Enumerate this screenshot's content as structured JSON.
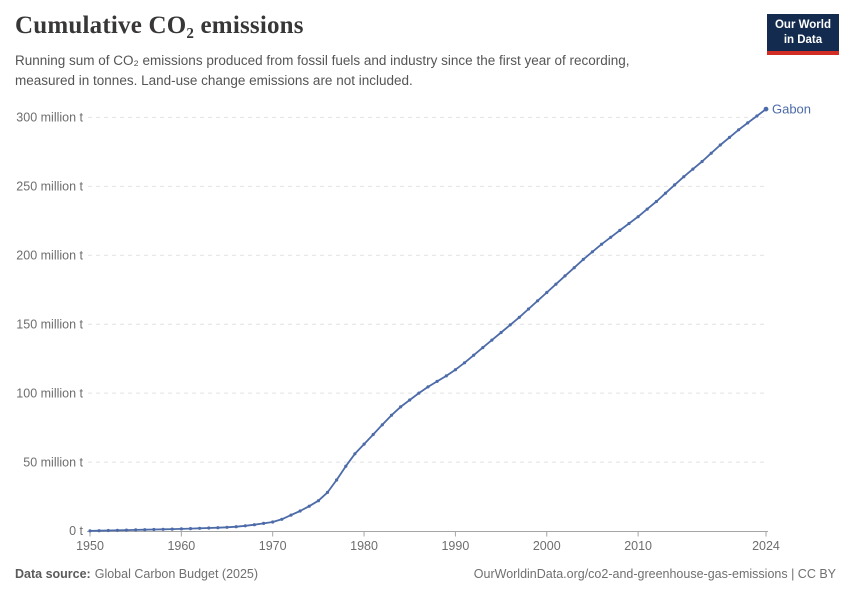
{
  "header": {
    "title": "Cumulative CO₂ emissions",
    "subtitle_line1": "Running sum of CO₂ emissions produced from fossil fuels and industry since the first year of recording,",
    "subtitle_line2": "measured in tonnes. Land-use change emissions are not included.",
    "logo_line1": "Our World",
    "logo_line2": "in Data"
  },
  "footer": {
    "source_label": "Data source:",
    "source_value": "Global Carbon Budget (2025)",
    "attribution": "OurWorldinData.org/co2-and-greenhouse-gas-emissions | CC BY"
  },
  "colors": {
    "series_blue": "#4C6BA8",
    "logo_background": "#122B4F",
    "logo_red_bar": "#D12D25",
    "gridline": "#E2E2E2",
    "axis": "#A5A5A5",
    "axis_text": "#6E6E6E"
  },
  "chart_data": {
    "type": "line",
    "title": "Cumulative CO₂ emissions",
    "xlabel": "",
    "ylabel": "",
    "unit": "million t",
    "xlim": [
      1950,
      2024
    ],
    "ylim": [
      0,
      310
    ],
    "grid": "horizontal-dashed",
    "legend_position": "end-of-line-label",
    "x_ticks": [
      1950,
      1960,
      1970,
      1980,
      1990,
      2000,
      2010,
      2024
    ],
    "y_ticks": [
      {
        "value": 0,
        "label": "0 t"
      },
      {
        "value": 50,
        "label": "50 million t"
      },
      {
        "value": 100,
        "label": "100 million t"
      },
      {
        "value": 150,
        "label": "150 million t"
      },
      {
        "value": 200,
        "label": "200 million t"
      },
      {
        "value": 250,
        "label": "250 million t"
      },
      {
        "value": 300,
        "label": "300 million t"
      }
    ],
    "series": [
      {
        "name": "Gabon",
        "color": "#4C6BA8",
        "x": [
          1950,
          1951,
          1952,
          1953,
          1954,
          1955,
          1956,
          1957,
          1958,
          1959,
          1960,
          1961,
          1962,
          1963,
          1964,
          1965,
          1966,
          1967,
          1968,
          1969,
          1970,
          1971,
          1972,
          1973,
          1974,
          1975,
          1976,
          1977,
          1978,
          1979,
          1980,
          1981,
          1982,
          1983,
          1984,
          1985,
          1986,
          1987,
          1988,
          1989,
          1990,
          1991,
          1992,
          1993,
          1994,
          1995,
          1996,
          1997,
          1998,
          1999,
          2000,
          2001,
          2002,
          2003,
          2004,
          2005,
          2006,
          2007,
          2008,
          2009,
          2010,
          2011,
          2012,
          2013,
          2014,
          2015,
          2016,
          2017,
          2018,
          2019,
          2020,
          2021,
          2022,
          2023,
          2024
        ],
        "y": [
          0.1,
          0.2,
          0.35,
          0.5,
          0.65,
          0.8,
          0.95,
          1.1,
          1.25,
          1.4,
          1.55,
          1.75,
          1.95,
          2.15,
          2.4,
          2.65,
          3.1,
          3.8,
          4.6,
          5.5,
          6.5,
          8.5,
          11.5,
          14.5,
          18,
          22,
          28,
          37,
          47,
          56,
          63,
          70,
          77,
          84,
          90,
          95,
          100,
          104.5,
          108.5,
          112.5,
          117,
          122,
          127.5,
          133,
          138.5,
          144,
          149.5,
          155,
          161,
          167,
          173,
          179,
          185,
          191,
          197,
          202.5,
          208,
          213,
          218,
          223,
          228,
          233.5,
          239,
          245,
          251,
          257,
          262.5,
          268,
          274,
          280,
          285.5,
          291,
          296,
          301,
          306
        ]
      }
    ]
  }
}
